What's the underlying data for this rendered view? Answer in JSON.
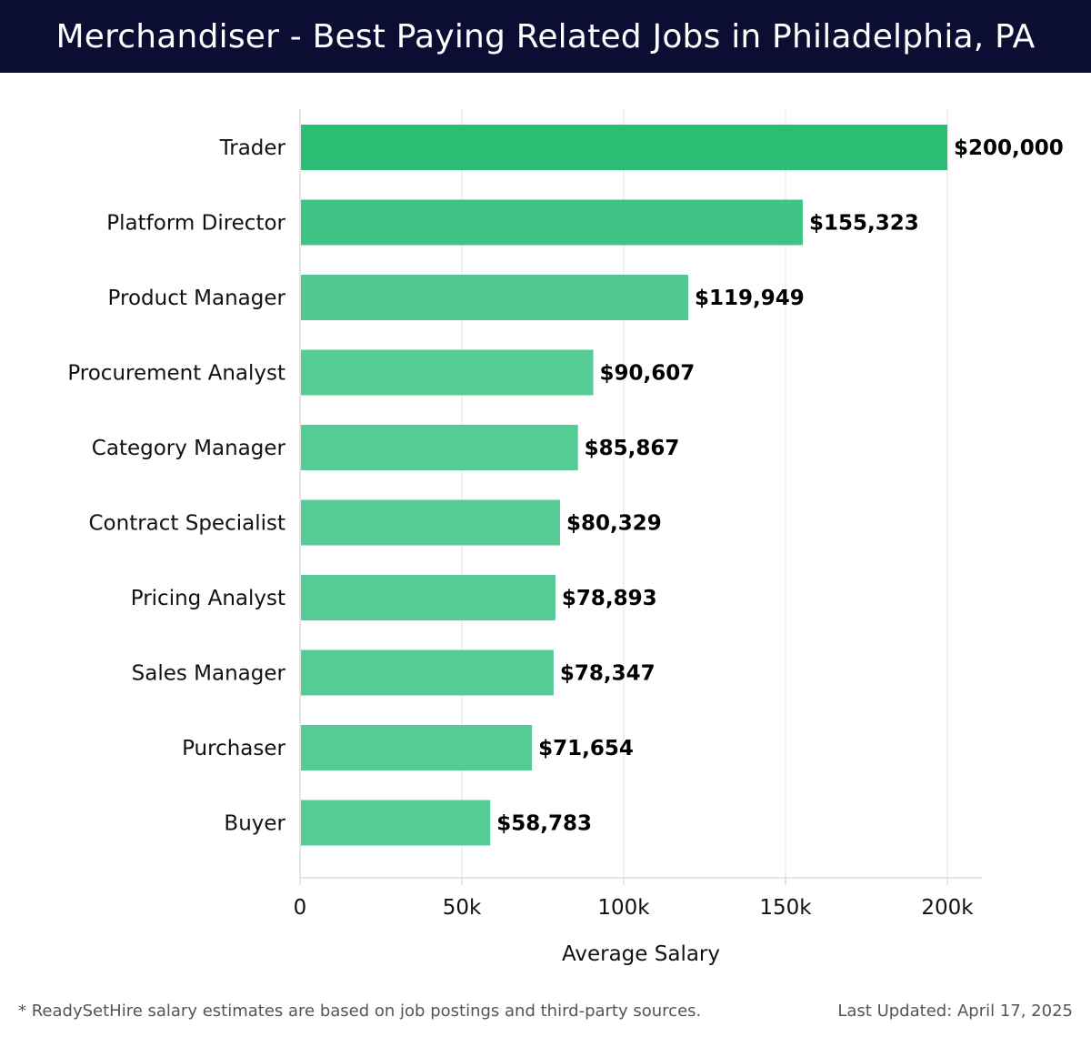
{
  "header": {
    "title": "Merchandiser - Best Paying Related Jobs in Philadelphia, PA"
  },
  "chart_data": {
    "type": "bar",
    "orientation": "horizontal",
    "categories": [
      "Trader",
      "Platform Director",
      "Product Manager",
      "Procurement Analyst",
      "Category Manager",
      "Contract Specialist",
      "Pricing Analyst",
      "Sales Manager",
      "Purchaser",
      "Buyer"
    ],
    "values": [
      200000,
      155323,
      119949,
      90607,
      85867,
      80329,
      78893,
      78347,
      71654,
      58783
    ],
    "value_labels": [
      "$200,000",
      "$155,323",
      "$119,949",
      "$90,607",
      "$85,867",
      "$80,329",
      "$78,893",
      "$78,347",
      "$71,654",
      "$58,783"
    ],
    "xlabel": "Average Salary",
    "xlim": [
      0,
      210000
    ],
    "xticks": [
      0,
      50000,
      100000,
      150000,
      200000
    ],
    "xtick_labels": [
      "0",
      "50k",
      "100k",
      "150k",
      "200k"
    ],
    "grid": "vertical",
    "colors": {
      "bar_max": "#2bbd74",
      "bar_min": "#55cb95",
      "grid": "#e3e3e3",
      "axis": "#cccccc",
      "label": "#000000"
    }
  },
  "footer": {
    "note": "* ReadySetHire salary estimates are based on job postings and third-party sources.",
    "updated": "Last Updated: April 17, 2025"
  }
}
